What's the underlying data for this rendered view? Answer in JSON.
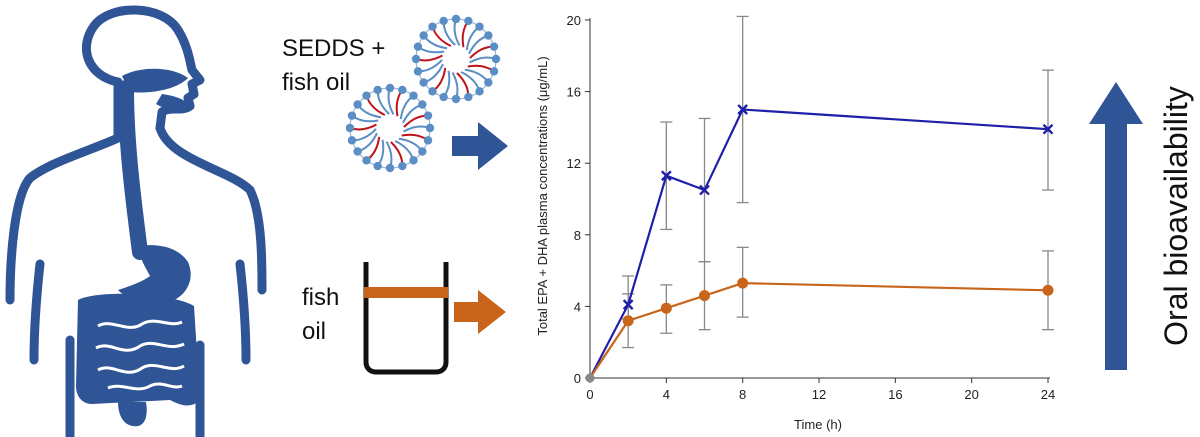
{
  "labels": {
    "sedds_line1": "SEDDS +",
    "sedds_line2": "fish oil",
    "fish_line1": "fish",
    "fish_line2": "oil",
    "bioavailability": "Oral bioavailability"
  },
  "colors": {
    "body": "#2f5597",
    "sedds_series": "#1f1fa8",
    "fishoil_series": "#c8651b",
    "error_bar": "#888888",
    "micelle_head": "#5b8ec4",
    "micelle_tail_red": "#c0141a"
  },
  "icons": {
    "human": "human-digestive-system-icon",
    "micelle": "micelle-icon",
    "beaker": "beaker-icon",
    "arrow_up": "arrow-up-icon",
    "arrow_right": "arrow-right-icon"
  },
  "chart_data": {
    "type": "line",
    "title": "",
    "xlabel": "Time (h)",
    "ylabel": "Total EPA + DHA plasma concentrations (μg/mL)",
    "xlim": [
      0,
      24
    ],
    "ylim": [
      0,
      20
    ],
    "xticks": [
      0,
      4,
      8,
      12,
      16,
      20,
      24
    ],
    "yticks": [
      0,
      4,
      8,
      12,
      16,
      20
    ],
    "series": [
      {
        "name": "SEDDS + fish oil",
        "marker": "x",
        "x": [
          0,
          2,
          4,
          6,
          8,
          24
        ],
        "values": [
          0,
          4.1,
          11.3,
          10.5,
          15.0,
          13.9
        ],
        "err_low": [
          0,
          3.3,
          8.3,
          6.5,
          9.8,
          10.5
        ],
        "err_high": [
          0,
          5.7,
          14.3,
          14.5,
          20.2,
          17.2
        ]
      },
      {
        "name": "fish oil",
        "marker": "circle",
        "x": [
          0,
          2,
          4,
          6,
          8,
          24
        ],
        "values": [
          0,
          3.2,
          3.9,
          4.6,
          5.3,
          4.9
        ],
        "err_low": [
          0,
          1.7,
          2.5,
          2.7,
          3.4,
          2.7
        ],
        "err_high": [
          0,
          4.7,
          5.2,
          6.5,
          7.3,
          7.1
        ]
      }
    ]
  }
}
